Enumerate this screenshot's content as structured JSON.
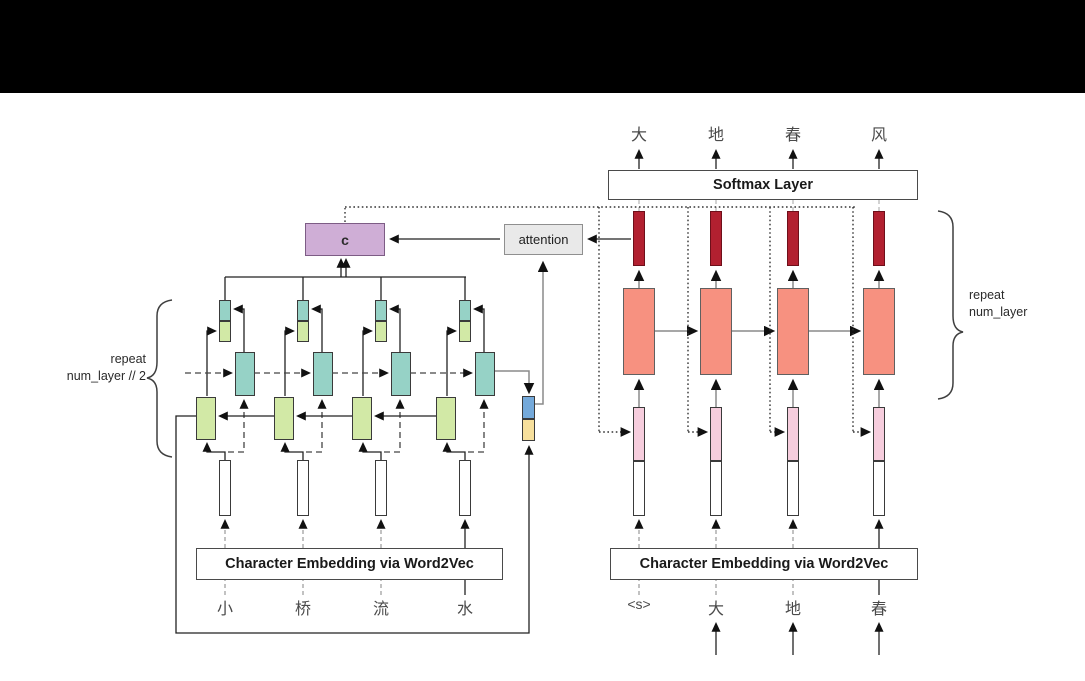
{
  "colors": {
    "page_bg": "#ffffff",
    "top_bar": "#000000",
    "context_fill": "#cfaed6",
    "context_border": "#7d5c85",
    "attention_fill": "#e9e9e9",
    "attention_border": "#8f8f8f",
    "teal_fill": "#96d2c6",
    "green_fill": "#d2e9a6",
    "red_fill": "#b22030",
    "red_border": "#6e0f1a",
    "salmon_fill": "#f79180",
    "pink_fill": "#f6cddd",
    "blue_fill": "#74a9da",
    "yellow_fill": "#f6df9c",
    "wire": "#222222",
    "wire_gray": "#8a8a8a"
  },
  "context": {
    "label": "c"
  },
  "attention": {
    "label": "attention"
  },
  "encoder": {
    "embedding_label": "Character Embedding via Word2Vec",
    "input_chars": [
      "小",
      "桥",
      "流",
      "水"
    ],
    "repeat_label": [
      "repeat",
      "num_layer // 2"
    ]
  },
  "decoder": {
    "softmax_label": "Softmax Layer",
    "embedding_label": "Character Embedding via Word2Vec",
    "input_chars": [
      "<s>",
      "大",
      "地",
      "春"
    ],
    "output_chars": [
      "大",
      "地",
      "春",
      "风"
    ],
    "repeat_label": [
      "repeat",
      "num_layer"
    ]
  }
}
